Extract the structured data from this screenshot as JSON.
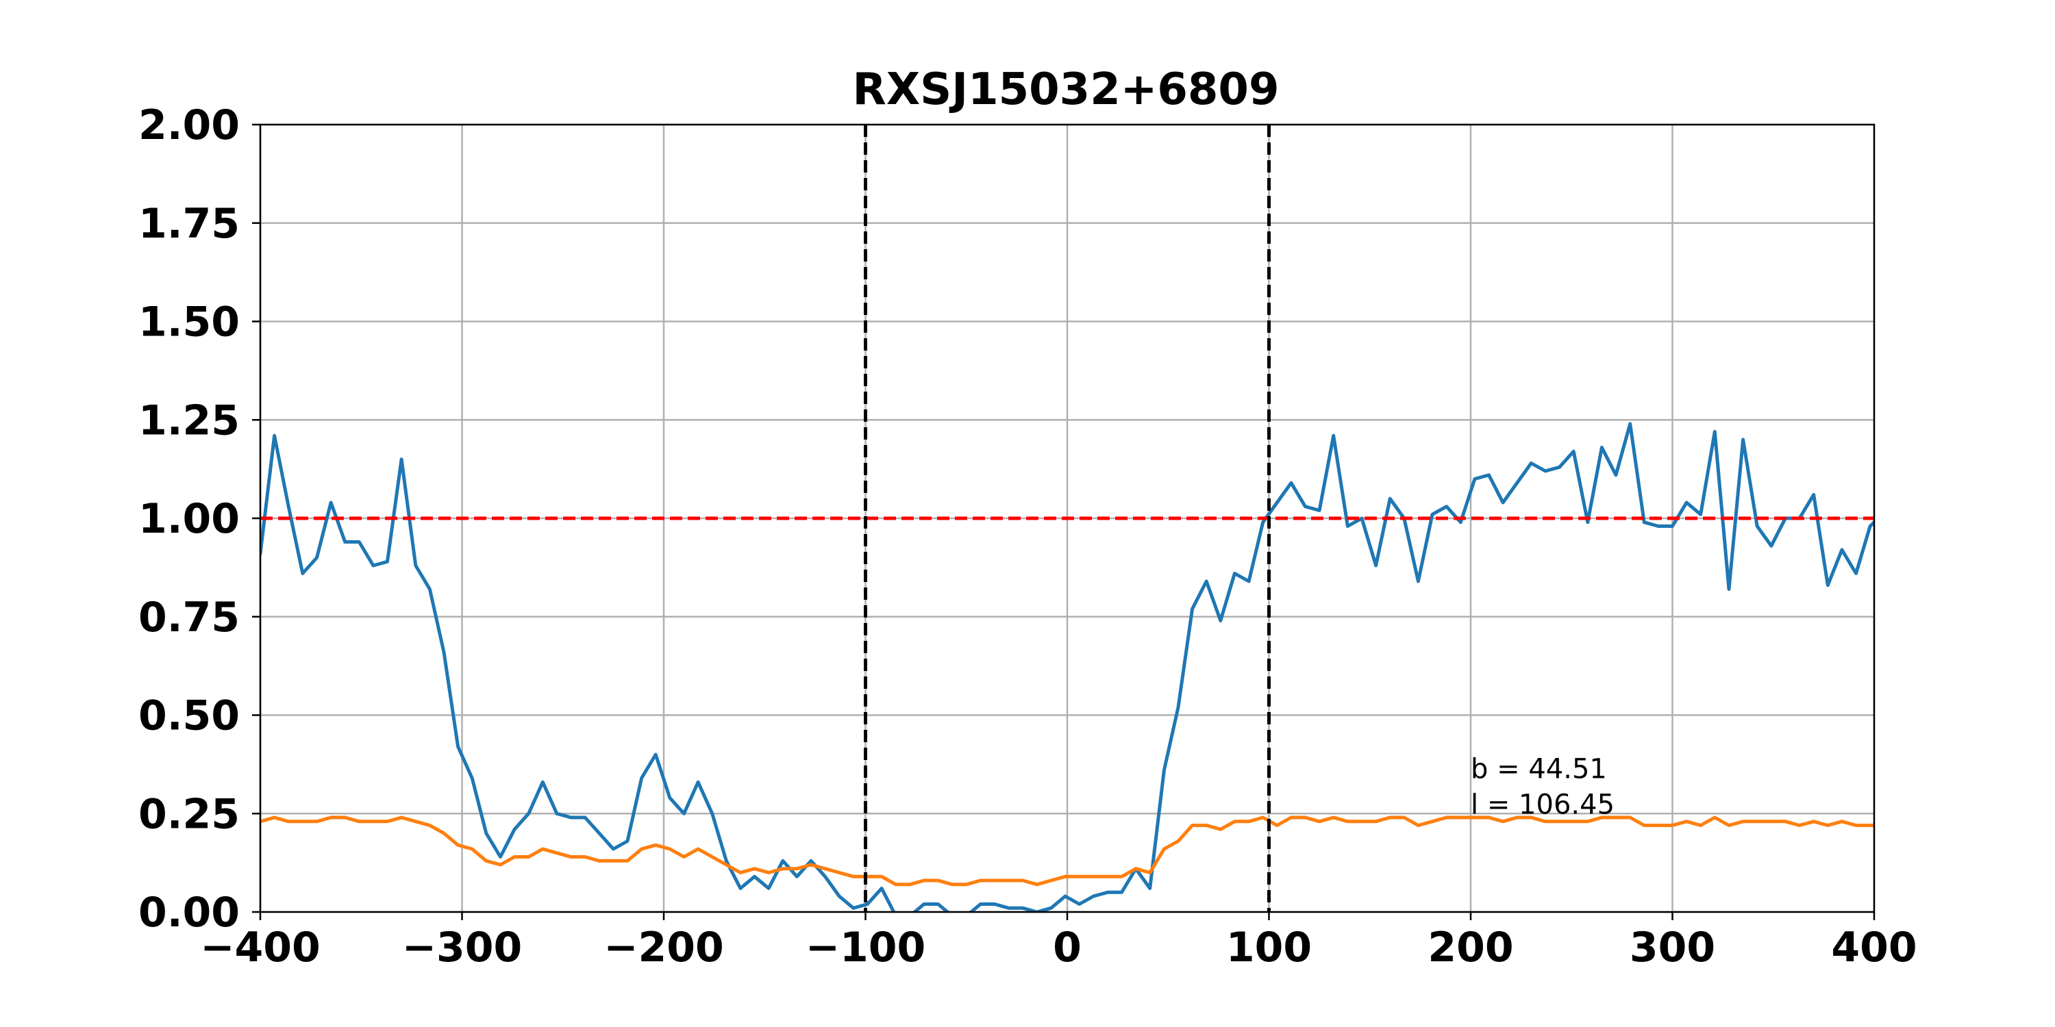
{
  "chart_data": {
    "type": "line",
    "title": "RXSJ15032+6809",
    "xlabel": "",
    "ylabel": "",
    "xlim": [
      -400,
      400
    ],
    "ylim": [
      0,
      2
    ],
    "xticks": [
      -400,
      -300,
      -200,
      -100,
      0,
      100,
      200,
      300,
      400
    ],
    "xtick_labels": [
      "−400",
      "−300",
      "−200",
      "−100",
      "0",
      "100",
      "200",
      "300",
      "400"
    ],
    "yticks": [
      0,
      0.25,
      0.5,
      0.75,
      1.0,
      1.25,
      1.5,
      1.75,
      2.0
    ],
    "ytick_labels": [
      "0.00",
      "0.25",
      "0.50",
      "0.75",
      "1.00",
      "1.25",
      "1.50",
      "1.75",
      "2.00"
    ],
    "grid": true,
    "reference_lines": [
      {
        "orientation": "horizontal",
        "value": 1.0,
        "color": "#ff0000",
        "style": "dashed"
      },
      {
        "orientation": "vertical",
        "value": -100,
        "color": "#000000",
        "style": "dashed"
      },
      {
        "orientation": "vertical",
        "value": 100,
        "color": "#000000",
        "style": "dashed"
      }
    ],
    "annotations": [
      {
        "text": "b = 44.51",
        "x": 200,
        "y": 0.34
      },
      {
        "text": "l = 106.45",
        "x": 200,
        "y": 0.25
      }
    ],
    "series": [
      {
        "color": "#1f77b4",
        "x": [
          -400,
          -393,
          -386,
          -379,
          -372,
          -365,
          -358,
          -351,
          -344,
          -337,
          -330,
          -323,
          -316,
          -309,
          -302,
          -295,
          -288,
          -281,
          -274,
          -267,
          -260,
          -253,
          -246,
          -239,
          -232,
          -225,
          -218,
          -211,
          -204,
          -197,
          -190,
          -183,
          -176,
          -169,
          -162,
          -155,
          -148,
          -141,
          -134,
          -127,
          -120,
          -113,
          -106,
          -99,
          -92,
          -85,
          -78,
          -71,
          -64,
          -57,
          -50,
          -43,
          -36,
          -29,
          -22,
          -15,
          -8,
          -1,
          6,
          13,
          20,
          27,
          34,
          41,
          48,
          55,
          62,
          69,
          76,
          83,
          90,
          97,
          104,
          111,
          118,
          125,
          132,
          139,
          146,
          153,
          160,
          167,
          174,
          181,
          188,
          195,
          202,
          209,
          216,
          223,
          230,
          237,
          244,
          251,
          258,
          265,
          272,
          279,
          286,
          293,
          300,
          307,
          314,
          321,
          328,
          335,
          342,
          349,
          356,
          363,
          370,
          377,
          384,
          391,
          398,
          400
        ],
        "values": [
          0.91,
          1.21,
          1.03,
          0.86,
          0.9,
          1.04,
          0.94,
          0.94,
          0.88,
          0.89,
          1.15,
          0.88,
          0.82,
          0.66,
          0.42,
          0.34,
          0.2,
          0.14,
          0.21,
          0.25,
          0.33,
          0.25,
          0.24,
          0.24,
          0.2,
          0.16,
          0.18,
          0.34,
          0.4,
          0.29,
          0.25,
          0.33,
          0.25,
          0.13,
          0.06,
          0.09,
          0.06,
          0.13,
          0.09,
          0.13,
          0.09,
          0.04,
          0.01,
          0.02,
          0.06,
          -0.01,
          -0.01,
          0.02,
          0.02,
          -0.01,
          -0.01,
          0.02,
          0.02,
          0.01,
          0.01,
          0.0,
          0.01,
          0.04,
          0.02,
          0.04,
          0.05,
          0.05,
          0.11,
          0.06,
          0.36,
          0.52,
          0.77,
          0.84,
          0.74,
          0.86,
          0.84,
          0.99,
          1.04,
          1.09,
          1.03,
          1.02,
          1.21,
          0.98,
          1.0,
          0.88,
          1.05,
          1.0,
          0.84,
          1.01,
          1.03,
          0.99,
          1.1,
          1.11,
          1.04,
          1.09,
          1.14,
          1.12,
          1.13,
          1.17,
          0.99,
          1.18,
          1.11,
          1.24,
          0.99,
          0.98,
          0.98,
          1.04,
          1.01,
          1.22,
          0.82,
          1.2,
          0.98,
          0.93,
          1.0,
          1.0,
          1.06,
          0.83,
          0.92,
          0.86,
          0.98,
          0.99
        ]
      },
      {
        "color": "#ff7f0e",
        "x": [
          -400,
          -393,
          -386,
          -379,
          -372,
          -365,
          -358,
          -351,
          -344,
          -337,
          -330,
          -323,
          -316,
          -309,
          -302,
          -295,
          -288,
          -281,
          -274,
          -267,
          -260,
          -253,
          -246,
          -239,
          -232,
          -225,
          -218,
          -211,
          -204,
          -197,
          -190,
          -183,
          -176,
          -169,
          -162,
          -155,
          -148,
          -141,
          -134,
          -127,
          -120,
          -113,
          -106,
          -99,
          -92,
          -85,
          -78,
          -71,
          -64,
          -57,
          -50,
          -43,
          -36,
          -29,
          -22,
          -15,
          -8,
          -1,
          6,
          13,
          20,
          27,
          34,
          41,
          48,
          55,
          62,
          69,
          76,
          83,
          90,
          97,
          104,
          111,
          118,
          125,
          132,
          139,
          146,
          153,
          160,
          167,
          174,
          181,
          188,
          195,
          202,
          209,
          216,
          223,
          230,
          237,
          244,
          251,
          258,
          265,
          272,
          279,
          286,
          293,
          300,
          307,
          314,
          321,
          328,
          335,
          342,
          349,
          356,
          363,
          370,
          377,
          384,
          391,
          398,
          400
        ],
        "values": [
          0.23,
          0.24,
          0.23,
          0.23,
          0.23,
          0.24,
          0.24,
          0.23,
          0.23,
          0.23,
          0.24,
          0.23,
          0.22,
          0.2,
          0.17,
          0.16,
          0.13,
          0.12,
          0.14,
          0.14,
          0.16,
          0.15,
          0.14,
          0.14,
          0.13,
          0.13,
          0.13,
          0.16,
          0.17,
          0.16,
          0.14,
          0.16,
          0.14,
          0.12,
          0.1,
          0.11,
          0.1,
          0.11,
          0.11,
          0.12,
          0.11,
          0.1,
          0.09,
          0.09,
          0.09,
          0.07,
          0.07,
          0.08,
          0.08,
          0.07,
          0.07,
          0.08,
          0.08,
          0.08,
          0.08,
          0.07,
          0.08,
          0.09,
          0.09,
          0.09,
          0.09,
          0.09,
          0.11,
          0.1,
          0.16,
          0.18,
          0.22,
          0.22,
          0.21,
          0.23,
          0.23,
          0.24,
          0.22,
          0.24,
          0.24,
          0.23,
          0.24,
          0.23,
          0.23,
          0.23,
          0.24,
          0.24,
          0.22,
          0.23,
          0.24,
          0.24,
          0.24,
          0.24,
          0.23,
          0.24,
          0.24,
          0.23,
          0.23,
          0.23,
          0.23,
          0.24,
          0.24,
          0.24,
          0.22,
          0.22,
          0.22,
          0.23,
          0.22,
          0.24,
          0.22,
          0.23,
          0.23,
          0.23,
          0.23,
          0.22,
          0.23,
          0.22,
          0.23,
          0.22,
          0.22,
          0.22
        ]
      }
    ]
  }
}
